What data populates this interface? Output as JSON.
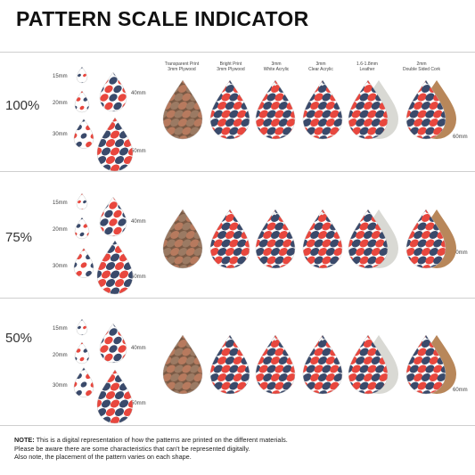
{
  "title": "PATTERN SCALE INDICATOR",
  "rows": [
    {
      "scale": "100%",
      "size_labels": [
        "15mm",
        "20mm",
        "30mm",
        "40mm",
        "50mm"
      ],
      "side_label": "60mm"
    },
    {
      "scale": "75%",
      "size_labels": [
        "15mm",
        "20mm",
        "30mm",
        "40mm",
        "50mm"
      ],
      "side_label": "60mm"
    },
    {
      "scale": "50%",
      "size_labels": [
        "15mm",
        "20mm",
        "30mm",
        "40mm",
        "50mm"
      ],
      "side_label": "60mm"
    }
  ],
  "materials": [
    {
      "line1": "Transparent Print",
      "line2": "3mm Plywood",
      "color": "#c99a7c"
    },
    {
      "line1": "Bright Print",
      "line2": "3mm Plywood",
      "color": "#ffffff"
    },
    {
      "line1": "3mm",
      "line2": "White Acrylic",
      "color": "#ffffff"
    },
    {
      "line1": "3mm",
      "line2": "Clear Acrylic",
      "color": "#ffffff"
    },
    {
      "line1": "1.6-1.8mm",
      "line2": "Leather",
      "color": "#ffffff"
    },
    {
      "line1": "2mm",
      "line2": "Double Sided Cork",
      "color": "#ffffff"
    }
  ],
  "note": {
    "label": "NOTE:",
    "line1": " This is a digital representation of how the patterns are printed on the different materials.",
    "line2": "Please be aware there are some characteristics that can't be represented digitally.",
    "line3": "Also note, the placement of the pattern varies on each shape."
  },
  "colors": {
    "navy": "#3a4a6b",
    "red": "#e8473e",
    "brown": "#7a5a45",
    "leather": "#d9d9d4",
    "cork": "#b8875a"
  }
}
